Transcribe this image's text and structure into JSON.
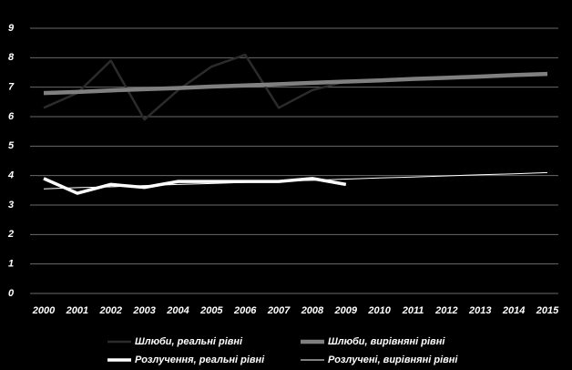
{
  "chart_data": {
    "type": "line",
    "categories": [
      "2000",
      "2001",
      "2002",
      "2003",
      "2004",
      "2005",
      "2006",
      "2007",
      "2008",
      "2009",
      "2010",
      "2011",
      "2012",
      "2013",
      "2014",
      "2015"
    ],
    "series": [
      {
        "name": "Шлюби, реальні рівні",
        "color": "#2b2b2b",
        "width": 2.5,
        "values": [
          6.3,
          6.8,
          7.9,
          5.9,
          6.9,
          7.7,
          8.1,
          6.3,
          6.9,
          7.2,
          null,
          null,
          null,
          null,
          null,
          null
        ]
      },
      {
        "name": "Шлюби, вирівняні рівні",
        "color": "#808080",
        "width": 4.5,
        "values": [
          6.8,
          6.84,
          6.89,
          6.93,
          6.97,
          7.02,
          7.06,
          7.1,
          7.15,
          7.19,
          7.23,
          7.28,
          7.32,
          7.36,
          7.41,
          7.45
        ]
      },
      {
        "name": "Розлучення, реальні рівні",
        "color": "#ffffff",
        "width": 3.5,
        "values": [
          3.9,
          3.4,
          3.7,
          3.6,
          3.8,
          3.8,
          3.8,
          3.8,
          3.9,
          3.7,
          null,
          null,
          null,
          null,
          null,
          null
        ]
      },
      {
        "name": "Розлучені, вирівняні рівні",
        "color": "#ffffff",
        "width": 1,
        "values": [
          3.55,
          3.59,
          3.62,
          3.66,
          3.7,
          3.73,
          3.77,
          3.81,
          3.84,
          3.88,
          3.92,
          3.95,
          3.99,
          4.03,
          4.06,
          4.1
        ]
      }
    ],
    "ylim": [
      0,
      9
    ],
    "yticks": [
      0,
      1,
      2,
      3,
      4,
      5,
      6,
      7,
      8,
      9
    ],
    "grid": true
  }
}
